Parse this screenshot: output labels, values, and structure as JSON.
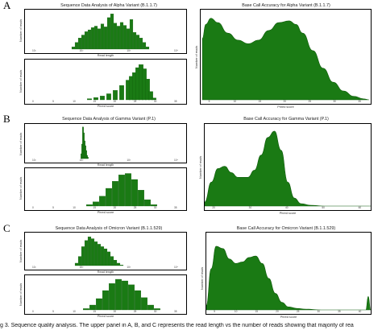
{
  "panels": [
    {
      "letter": "A",
      "left_title": "Sequence Data Analysis of Alpha Variant (B.1.1.7)",
      "right_title": "Base Call Accuracy for Alpha Variant (B.1.1.7)"
    },
    {
      "letter": "B",
      "left_title": "Sequence Data Analysis of Gamma Variant (P.1)",
      "right_title": "Base Call Accuracy for Gamma Variant (P.1)"
    },
    {
      "letter": "C",
      "left_title": "Sequence Data Analysis of Omicron Variant (B.1.1.529)",
      "right_title": "Base Call Accuracy for Omicron Variant (B.1.1.529)"
    }
  ],
  "caption": "g 3. Sequence quality analysis. The upper panel in A, B, and C represents the read length vs the number of reads showing that majority of rea",
  "colors": {
    "fill": "#1a7a14",
    "stroke": "#0f5c0b"
  },
  "chart_data": [
    {
      "id": "A-len",
      "type": "bar",
      "xlabel": "Read length",
      "ylabel": "Number of reads",
      "xscale": "log",
      "xticks": [
        "10¹",
        "10²",
        "10³",
        "10⁴"
      ],
      "ylim": [
        0,
        1
      ],
      "x": [
        0.3,
        0.32,
        0.34,
        0.36,
        0.38,
        0.4,
        0.42,
        0.44,
        0.46,
        0.48,
        0.5,
        0.52,
        0.54,
        0.56,
        0.58,
        0.6,
        0.62,
        0.64,
        0.66,
        0.68,
        0.7,
        0.72,
        0.74,
        0.76
      ],
      "values": [
        0.06,
        0.18,
        0.3,
        0.38,
        0.47,
        0.52,
        0.58,
        0.62,
        0.55,
        0.68,
        0.6,
        0.85,
        0.95,
        0.7,
        0.62,
        0.72,
        0.64,
        0.55,
        0.8,
        0.45,
        0.38,
        0.3,
        0.18,
        0.06
      ]
    },
    {
      "id": "A-score",
      "type": "bar",
      "xlabel": "Phred score",
      "ylabel": "Number of reads",
      "xticks": [
        "0",
        "5",
        "10",
        "15",
        "20",
        "25",
        "30",
        "35"
      ],
      "ylim": [
        0,
        1
      ],
      "x": [
        0.4,
        0.44,
        0.48,
        0.52,
        0.56,
        0.6,
        0.64,
        0.66,
        0.68,
        0.7,
        0.72,
        0.74,
        0.76,
        0.78,
        0.8
      ],
      "values": [
        0.03,
        0.06,
        0.1,
        0.16,
        0.25,
        0.38,
        0.52,
        0.62,
        0.72,
        0.85,
        0.93,
        0.82,
        0.55,
        0.22,
        0.05
      ]
    },
    {
      "id": "A-acc",
      "type": "area",
      "xlabel": "Phred score",
      "ylabel": "Number of reads",
      "xticks": [
        "5",
        "10",
        "15",
        "20",
        "25",
        "30",
        "35"
      ],
      "ylim": [
        0,
        1
      ],
      "x": [
        0.01,
        0.03,
        0.06,
        0.1,
        0.16,
        0.22,
        0.28,
        0.34,
        0.4,
        0.46,
        0.52,
        0.56,
        0.6,
        0.66,
        0.72,
        0.78,
        0.84,
        0.9,
        0.96,
        0.99
      ],
      "values": [
        0.7,
        0.86,
        0.93,
        0.88,
        0.76,
        0.68,
        0.64,
        0.68,
        0.79,
        0.88,
        0.9,
        0.86,
        0.76,
        0.56,
        0.36,
        0.2,
        0.1,
        0.04,
        0.01,
        0.0
      ]
    },
    {
      "id": "B-len",
      "type": "bar",
      "xlabel": "Read length",
      "ylabel": "Number of reads",
      "xscale": "log",
      "xticks": [
        "10¹",
        "10²",
        "10³",
        "10⁴"
      ],
      "ylim": [
        0,
        1
      ],
      "x": [
        0.35,
        0.355,
        0.36,
        0.365,
        0.37,
        0.375,
        0.38,
        0.385,
        0.39
      ],
      "values": [
        0.15,
        0.45,
        0.98,
        0.8,
        0.55,
        0.4,
        0.25,
        0.1,
        0.04
      ]
    },
    {
      "id": "B-score",
      "type": "bar",
      "xlabel": "Phred score",
      "ylabel": "Number of reads",
      "xticks": [
        "0",
        "5",
        "10",
        "15",
        "20",
        "25",
        "30",
        "35"
      ],
      "ylim": [
        0,
        1
      ],
      "x": [
        0.4,
        0.44,
        0.48,
        0.52,
        0.56,
        0.6,
        0.64,
        0.68,
        0.72,
        0.76,
        0.8
      ],
      "values": [
        0.04,
        0.12,
        0.28,
        0.5,
        0.7,
        0.88,
        0.92,
        0.75,
        0.45,
        0.18,
        0.04
      ]
    },
    {
      "id": "B-acc",
      "type": "area",
      "xlabel": "Phred score",
      "ylabel": "Number of reads",
      "xticks": [
        "20",
        "30",
        "40",
        "50",
        "60"
      ],
      "ylim": [
        0,
        1
      ],
      "x": [
        0.0,
        0.04,
        0.08,
        0.12,
        0.16,
        0.2,
        0.26,
        0.3,
        0.34,
        0.38,
        0.42,
        0.46,
        0.5,
        0.54,
        0.58,
        0.64,
        0.72,
        1.0
      ],
      "values": [
        0.05,
        0.3,
        0.47,
        0.5,
        0.42,
        0.36,
        0.36,
        0.45,
        0.64,
        0.86,
        0.94,
        0.7,
        0.3,
        0.1,
        0.03,
        0.01,
        0.0,
        0.0
      ]
    },
    {
      "id": "C-len",
      "type": "bar",
      "xlabel": "Read length",
      "ylabel": "Number of reads",
      "xscale": "log",
      "xticks": [
        "10¹",
        "10²",
        "10³",
        "10⁴"
      ],
      "ylim": [
        0,
        1
      ],
      "x": [
        0.32,
        0.34,
        0.36,
        0.38,
        0.4,
        0.42,
        0.44,
        0.46,
        0.48,
        0.5,
        0.52,
        0.54,
        0.56,
        0.58,
        0.6
      ],
      "values": [
        0.08,
        0.3,
        0.62,
        0.82,
        0.94,
        0.88,
        0.78,
        0.7,
        0.62,
        0.55,
        0.45,
        0.3,
        0.18,
        0.08,
        0.02
      ]
    },
    {
      "id": "C-score",
      "type": "bar",
      "xlabel": "Phred score",
      "ylabel": "Number of reads",
      "xticks": [
        "0",
        "5",
        "10",
        "15",
        "20",
        "25",
        "30",
        "35"
      ],
      "ylim": [
        0,
        1
      ],
      "x": [
        0.38,
        0.42,
        0.46,
        0.5,
        0.54,
        0.58,
        0.62,
        0.66,
        0.7,
        0.74,
        0.78,
        0.82
      ],
      "values": [
        0.04,
        0.15,
        0.35,
        0.6,
        0.82,
        0.95,
        0.9,
        0.78,
        0.6,
        0.38,
        0.15,
        0.04
      ]
    },
    {
      "id": "C-acc",
      "type": "area",
      "xlabel": "Phred score",
      "ylabel": "Number of reads",
      "xticks": [
        "5",
        "10",
        "15",
        "20",
        "25",
        "30",
        "35",
        "40"
      ],
      "ylim": [
        0,
        1
      ],
      "x": [
        0.0,
        0.03,
        0.06,
        0.1,
        0.14,
        0.18,
        0.22,
        0.26,
        0.3,
        0.34,
        0.38,
        0.42,
        0.46,
        0.5,
        0.55,
        0.6,
        0.7,
        0.8,
        0.97,
        0.985,
        1.0
      ],
      "values": [
        0.06,
        0.55,
        0.85,
        0.82,
        0.68,
        0.62,
        0.64,
        0.7,
        0.72,
        0.62,
        0.42,
        0.22,
        0.1,
        0.04,
        0.02,
        0.01,
        0.0,
        0.0,
        0.0,
        0.18,
        0.0
      ]
    }
  ]
}
